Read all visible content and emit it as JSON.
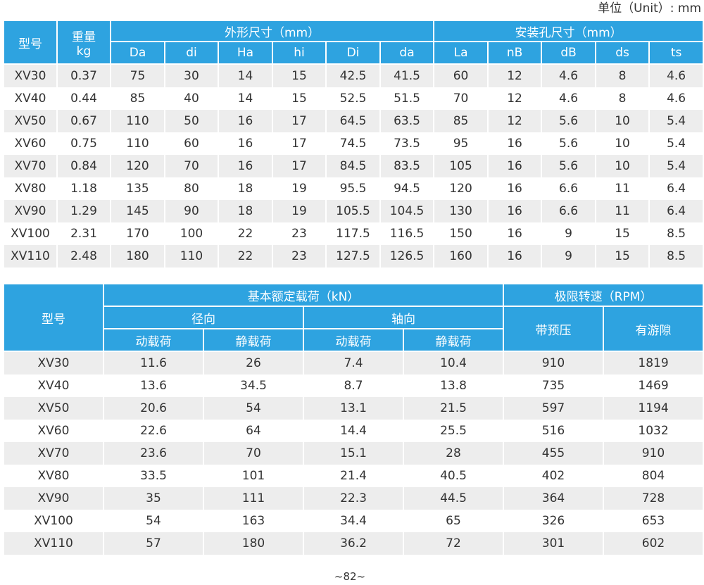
{
  "unit_note": "单位（Unit）: mm",
  "table1": {
    "model_header": "型号",
    "weight_header": "重量",
    "weight_unit": "kg",
    "outer_group": "外形尺寸（mm）",
    "mount_group": "安装孔尺寸（mm）",
    "outer_cols": [
      "Da",
      "di",
      "Ha",
      "hi",
      "Di",
      "da"
    ],
    "mount_cols": [
      "La",
      "nB",
      "dB",
      "ds",
      "ts"
    ],
    "rows": [
      [
        "XV30",
        "0.37",
        "75",
        "30",
        "14",
        "15",
        "42.5",
        "41.5",
        "60",
        "12",
        "4.6",
        "8",
        "4.6"
      ],
      [
        "XV40",
        "0.44",
        "85",
        "40",
        "14",
        "15",
        "52.5",
        "51.5",
        "70",
        "12",
        "4.6",
        "8",
        "4.6"
      ],
      [
        "XV50",
        "0.67",
        "110",
        "50",
        "16",
        "17",
        "64.5",
        "63.5",
        "85",
        "12",
        "5.6",
        "10",
        "5.4"
      ],
      [
        "XV60",
        "0.75",
        "110",
        "60",
        "16",
        "17",
        "74.5",
        "73.5",
        "95",
        "16",
        "5.6",
        "10",
        "5.4"
      ],
      [
        "XV70",
        "0.84",
        "120",
        "70",
        "16",
        "17",
        "84.5",
        "83.5",
        "105",
        "16",
        "5.6",
        "10",
        "5.4"
      ],
      [
        "XV80",
        "1.18",
        "135",
        "80",
        "18",
        "19",
        "95.5",
        "94.5",
        "120",
        "16",
        "6.6",
        "11",
        "6.4"
      ],
      [
        "XV90",
        "1.29",
        "145",
        "90",
        "18",
        "19",
        "105.5",
        "104.5",
        "130",
        "16",
        "6.6",
        "11",
        "6.4"
      ],
      [
        "XV100",
        "2.31",
        "170",
        "100",
        "22",
        "23",
        "117.5",
        "116.5",
        "150",
        "16",
        "9",
        "15",
        "8.5"
      ],
      [
        "XV110",
        "2.48",
        "180",
        "110",
        "22",
        "23",
        "127.5",
        "126.5",
        "160",
        "16",
        "9",
        "15",
        "8.5"
      ]
    ]
  },
  "table2": {
    "model_header": "型号",
    "load_group": "基本额定载荷（kN）",
    "speed_group": "极限转速（RPM）",
    "radial": "径向",
    "axial": "轴向",
    "dynamic": "动载荷",
    "static": "静载荷",
    "preload": "带预压",
    "clearance": "有游隙",
    "rows": [
      [
        "XV30",
        "11.6",
        "26",
        "7.4",
        "10.4",
        "910",
        "1819"
      ],
      [
        "XV40",
        "13.6",
        "34.5",
        "8.7",
        "13.8",
        "735",
        "1469"
      ],
      [
        "XV50",
        "20.6",
        "54",
        "13.1",
        "21.5",
        "597",
        "1194"
      ],
      [
        "XV60",
        "22.6",
        "64",
        "14.4",
        "25.5",
        "516",
        "1032"
      ],
      [
        "XV70",
        "23.6",
        "70",
        "15.1",
        "28",
        "455",
        "910"
      ],
      [
        "XV80",
        "33.5",
        "101",
        "21.4",
        "40.5",
        "402",
        "804"
      ],
      [
        "XV90",
        "35",
        "111",
        "22.3",
        "44.5",
        "364",
        "728"
      ],
      [
        "XV100",
        "54",
        "163",
        "34.4",
        "65",
        "326",
        "653"
      ],
      [
        "XV110",
        "57",
        "180",
        "36.2",
        "72",
        "301",
        "602"
      ]
    ]
  },
  "page_number": "~82~"
}
